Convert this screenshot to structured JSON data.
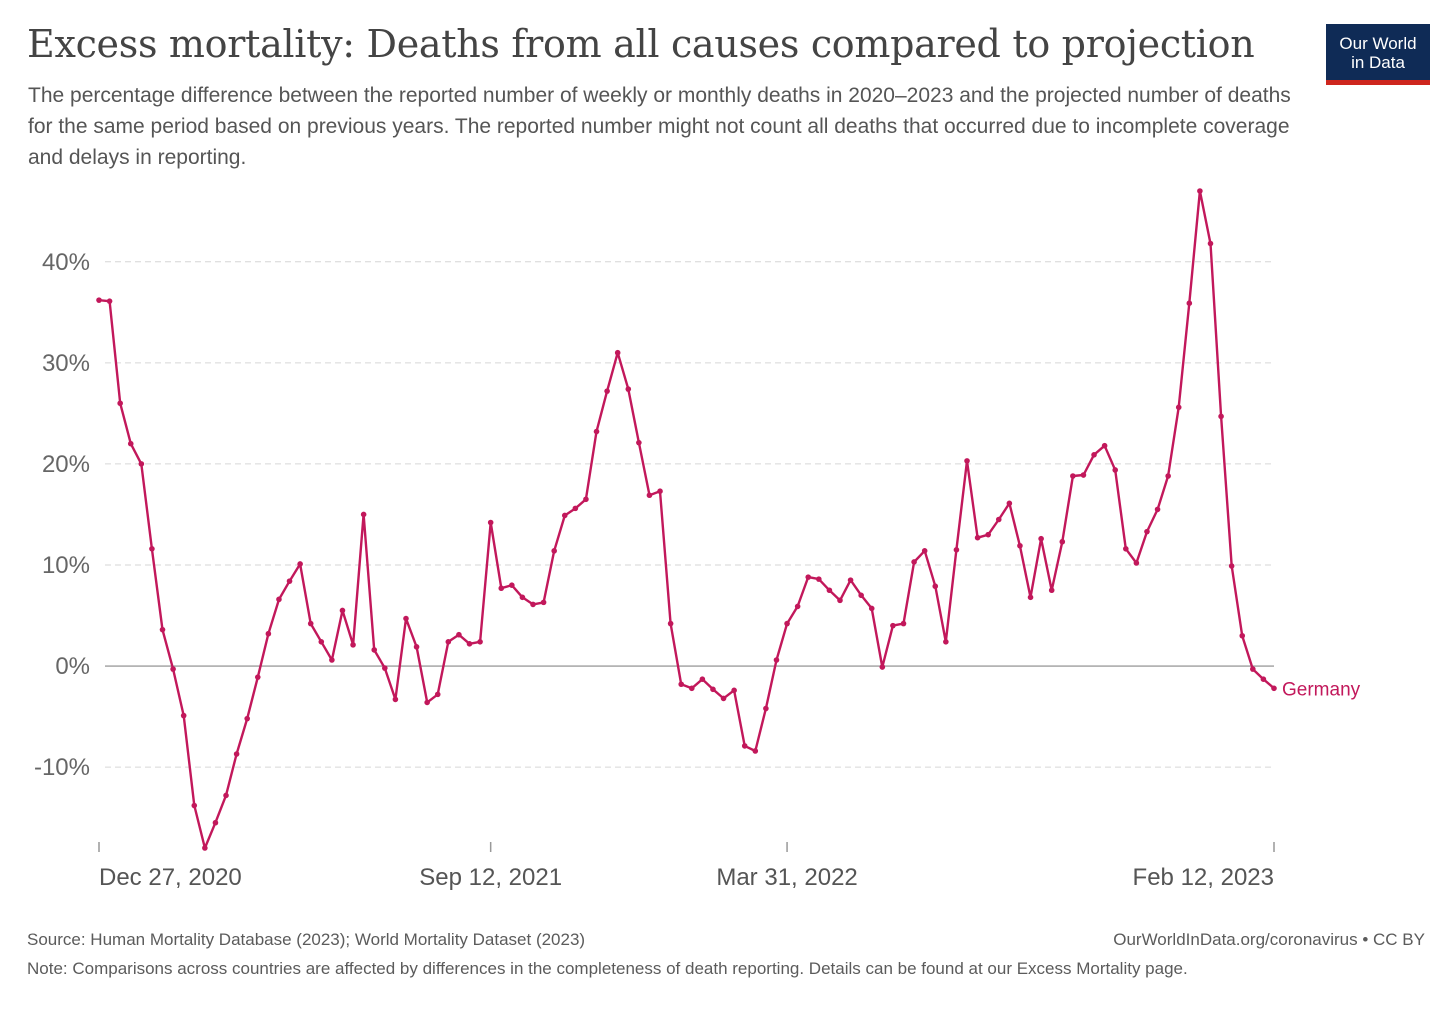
{
  "header": {
    "title": "Excess mortality: Deaths from all causes compared to projection",
    "subtitle": "The percentage difference between the reported number of weekly or monthly deaths in 2020–2023 and the projected number of deaths for the same period based on previous years. The reported number might not count all deaths that occurred due to incomplete coverage and delays in reporting."
  },
  "logo": {
    "line1": "Our World",
    "line2": "in Data",
    "bg_color": "#0f2b56",
    "accent_color": "#ce261e"
  },
  "footer": {
    "source": "Source: Human Mortality Database (2023); World Mortality Dataset (2023)",
    "url": "OurWorldInData.org/coronavirus • CC BY",
    "note": "Note: Comparisons across countries are affected by differences in the completeness of death reporting. Details can be found at our Excess Mortality page."
  },
  "chart_data": {
    "type": "line",
    "xlabel": "",
    "ylabel": "",
    "grid": true,
    "ylim": [
      -18,
      47
    ],
    "y_ticks": [
      -10,
      0,
      10,
      20,
      30,
      40
    ],
    "y_tick_labels": [
      "-10%",
      "0%",
      "10%",
      "20%",
      "30%",
      "40%"
    ],
    "x_tick_labels": [
      "Dec 27, 2020",
      "Sep 12, 2021",
      "Mar 31, 2022",
      "Feb 12, 2023"
    ],
    "x_tick_indices": [
      0,
      37,
      65,
      111
    ],
    "x_tick_label_anchor": [
      "start",
      "middle",
      "middle",
      "end"
    ],
    "line_color": "#c2185b",
    "series": [
      {
        "name": "Germany",
        "values": [
          36.2,
          36.1,
          26.0,
          22.0,
          20.0,
          11.6,
          3.6,
          -0.3,
          -4.9,
          -13.8,
          -18.0,
          -15.5,
          -12.8,
          -8.7,
          -5.2,
          -1.1,
          3.2,
          6.6,
          8.4,
          10.1,
          4.2,
          2.4,
          0.6,
          5.5,
          2.1,
          15.0,
          1.6,
          -0.2,
          -3.3,
          4.7,
          1.9,
          -3.6,
          -2.8,
          2.4,
          3.1,
          2.2,
          2.4,
          14.2,
          7.7,
          8.0,
          6.8,
          6.1,
          6.3,
          11.4,
          14.9,
          15.6,
          16.5,
          23.2,
          27.2,
          31.0,
          27.4,
          22.1,
          16.9,
          17.3,
          4.2,
          -1.8,
          -2.2,
          -1.3,
          -2.3,
          -3.2,
          -2.4,
          -7.9,
          -8.4,
          -4.2,
          0.6,
          4.2,
          5.9,
          8.8,
          8.6,
          7.5,
          6.5,
          8.5,
          7.0,
          5.7,
          -0.1,
          4.0,
          4.2,
          10.3,
          11.4,
          7.9,
          2.4,
          11.5,
          20.3,
          12.7,
          13.0,
          14.5,
          16.1,
          11.9,
          6.8,
          12.6,
          7.5,
          12.3,
          18.8,
          18.9,
          20.9,
          21.8,
          19.4,
          11.6,
          10.2,
          13.3,
          15.5,
          18.8,
          25.6,
          35.9,
          47.0,
          41.8,
          24.7,
          9.9,
          3.0,
          -0.3,
          -1.3,
          -2.2
        ]
      }
    ]
  }
}
